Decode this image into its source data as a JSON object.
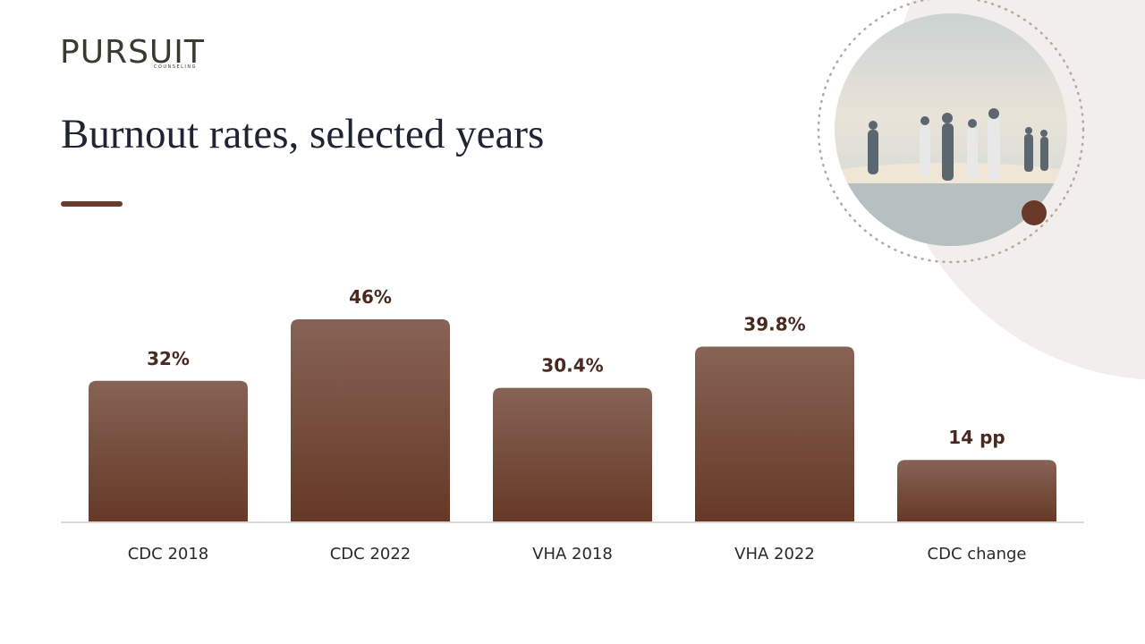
{
  "logo": {
    "name": "PURSUIT",
    "tagline": "COUNSELING"
  },
  "chart_data": {
    "type": "bar",
    "title": "Burnout rates, selected years",
    "categories": [
      "CDC 2018",
      "CDC 2022",
      "VHA 2018",
      "VHA 2022",
      "CDC change"
    ],
    "values": [
      32,
      46,
      30.4,
      39.8,
      14
    ],
    "value_labels": [
      "32%",
      "46%",
      "30.4%",
      "39.8%",
      "14 pp"
    ],
    "color": "#6e4332"
  }
}
